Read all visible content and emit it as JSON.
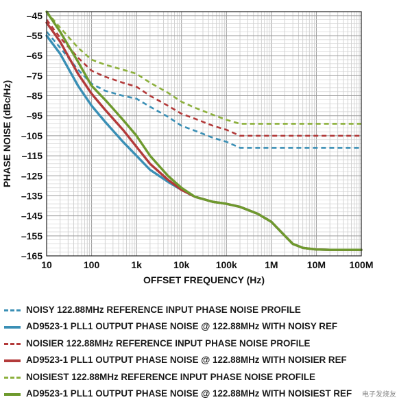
{
  "chart_data": {
    "type": "line",
    "xlabel": "OFFSET FREQUENCY (Hz)",
    "ylabel": "PHASE NOISE (dBc/Hz)",
    "x_scale": "log",
    "xlim": [
      10,
      100000000
    ],
    "ylim": [
      -165,
      -43
    ],
    "x_ticks": [
      10,
      100,
      1000,
      10000,
      100000,
      1000000,
      10000000,
      100000000
    ],
    "x_tick_labels": [
      "10",
      "100",
      "1k",
      "10k",
      "100k",
      "1M",
      "10M",
      "100M"
    ],
    "y_ticks": [
      -45,
      -55,
      -65,
      -75,
      -85,
      -95,
      -105,
      -115,
      -125,
      -135,
      -145,
      -155,
      -165
    ],
    "y_tick_labels": [
      "–45",
      "–55",
      "–65",
      "–75",
      "–85",
      "–95",
      "–105",
      "–115",
      "–125",
      "–135",
      "–145",
      "–155",
      "–165"
    ],
    "grid": true,
    "legend_position": "bottom",
    "series": [
      {
        "name": "NOISY 122.88MHz REFERENCE INPUT PHASE NOISE PROFILE",
        "color": "#3a8fb5",
        "dashed": true,
        "x": [
          10,
          20,
          50,
          100,
          200,
          500,
          1000,
          2000,
          5000,
          10000,
          20000,
          50000,
          100000,
          200000,
          1000000,
          10000000,
          100000000
        ],
        "y": [
          -53,
          -61,
          -72,
          -79,
          -82.5,
          -85,
          -86.5,
          -90.5,
          -95.5,
          -100,
          -102.5,
          -106,
          -108,
          -111,
          -111,
          -111,
          -111
        ]
      },
      {
        "name": "AD9523-1 PLL1 OUTPUT PHASE NOISE @ 122.88MHz WITH NOISY REF",
        "color": "#3a8fb5",
        "dashed": false,
        "x": [
          10,
          20,
          50,
          100,
          200,
          500,
          1000,
          2000,
          5000,
          10000,
          20000,
          50000,
          100000,
          200000,
          500000,
          1000000,
          2000000,
          3000000,
          5000000,
          10000000,
          20000000,
          100000000
        ],
        "y": [
          -55,
          -64,
          -80,
          -90,
          -98,
          -108,
          -115,
          -122,
          -128,
          -132,
          -135.5,
          -138,
          -139,
          -140.5,
          -144,
          -148,
          -155,
          -159,
          -161,
          -161.8,
          -162,
          -162
        ]
      },
      {
        "name": "NOISIER 122.88MHz REFERENCE INPUT PHASE NOISE PROFILE",
        "color": "#b33a3a",
        "dashed": true,
        "x": [
          10,
          20,
          50,
          100,
          200,
          500,
          1000,
          2000,
          5000,
          10000,
          20000,
          50000,
          100000,
          200000,
          1000000,
          10000000,
          100000000
        ],
        "y": [
          -47,
          -56,
          -66,
          -72.5,
          -75.5,
          -78.5,
          -80.5,
          -85,
          -90,
          -94,
          -96.5,
          -100,
          -102,
          -105,
          -105,
          -105,
          -105
        ]
      },
      {
        "name": "AD9523-1 PLL1 OUTPUT PHASE NOISE @ 122.88MHz WITH NOISIER REF",
        "color": "#b33a3a",
        "dashed": false,
        "x": [
          10,
          20,
          50,
          100,
          200,
          500,
          1000,
          2000,
          5000,
          10000,
          20000,
          50000,
          100000,
          200000,
          500000,
          1000000,
          2000000,
          3000000,
          5000000,
          10000000,
          20000000,
          100000000
        ],
        "y": [
          -48.5,
          -58,
          -74,
          -84,
          -92,
          -102,
          -110.5,
          -119,
          -127,
          -132,
          -135.5,
          -138,
          -139,
          -140.5,
          -144,
          -148,
          -155,
          -159,
          -161,
          -161.8,
          -162,
          -162
        ]
      },
      {
        "name": "NOISIEST 122.88MHz REFERENCE INPUT PHASE NOISE PROFILE",
        "color": "#8cb03c",
        "dashed": true,
        "x": [
          10,
          20,
          50,
          100,
          200,
          500,
          1000,
          2000,
          5000,
          10000,
          20000,
          50000,
          100000,
          200000,
          1000000,
          10000000,
          100000000
        ],
        "y": [
          -43,
          -51,
          -61,
          -67,
          -69.5,
          -72,
          -74,
          -78.5,
          -83.5,
          -88,
          -91,
          -94.5,
          -97,
          -99,
          -99,
          -99,
          -99
        ]
      },
      {
        "name": "AD9523-1 PLL1 OUTPUT PHASE NOISE @ 122.88MHz WITH NOISIEST REF",
        "color": "#6e9a2e",
        "dashed": false,
        "x": [
          10,
          20,
          50,
          100,
          200,
          500,
          1000,
          2000,
          5000,
          10000,
          20000,
          50000,
          100000,
          200000,
          500000,
          1000000,
          2000000,
          3000000,
          5000000,
          10000000,
          20000000,
          100000000
        ],
        "y": [
          -43,
          -53,
          -68,
          -80,
          -87,
          -97,
          -105,
          -115,
          -125,
          -131,
          -135.5,
          -138,
          -139,
          -140.5,
          -144,
          -148,
          -155,
          -159,
          -161,
          -161.8,
          -162,
          -162
        ]
      }
    ]
  },
  "watermark": "电子发烧友"
}
